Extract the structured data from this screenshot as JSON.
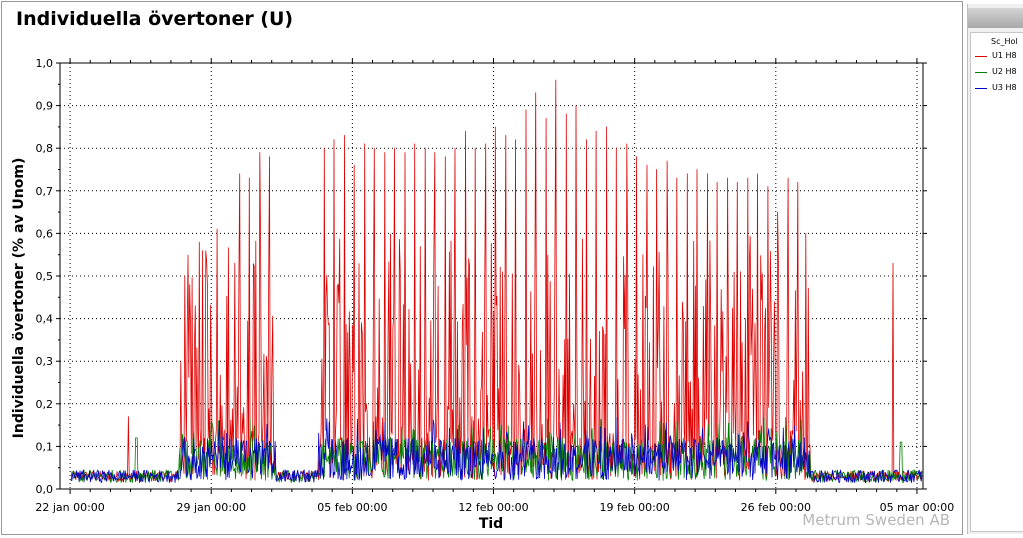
{
  "colors": {
    "u1": "#e00000",
    "u2": "#008000",
    "u3": "#0000c8"
  },
  "legend": {
    "title": "Sc_Hol",
    "items": [
      {
        "label": "U1 H8",
        "color": "#e00000"
      },
      {
        "label": "U2 H8",
        "color": "#008000"
      },
      {
        "label": "U3 H8",
        "color": "#0000c8"
      }
    ]
  },
  "watermark": "Metrum Sweden AB",
  "chart_data": {
    "type": "line",
    "title": "Individuella övertoner (U)",
    "xlabel": "Tid",
    "ylabel": "Individuella övertoner (% av Unom)",
    "ylim": [
      0,
      1.0
    ],
    "xlim_days": [
      -0.5,
      42.3
    ],
    "yticks": [
      "0,0",
      "0,1",
      "0,2",
      "0,3",
      "0,4",
      "0,5",
      "0,6",
      "0,7",
      "0,8",
      "0,9",
      "1,0"
    ],
    "xticks": [
      {
        "label": "22 jan 00:00",
        "day": 0
      },
      {
        "label": "29 jan 00:00",
        "day": 7
      },
      {
        "label": "05 feb 00:00",
        "day": 14
      },
      {
        "label": "12 feb 00:00",
        "day": 21
      },
      {
        "label": "19 feb 00:00",
        "day": 28
      },
      {
        "label": "26 feb 00:00",
        "day": 35
      },
      {
        "label": "05 mar 00:00",
        "day": 42
      }
    ],
    "grid": true,
    "legend_position": "right panel",
    "series": [
      {
        "name": "U1 H8",
        "color": "#e00000",
        "baseline": 0.03,
        "peaks": [
          {
            "day": 2.9,
            "value": 0.17
          },
          {
            "day": 5.7,
            "value": 0.5
          },
          {
            "day": 6.2,
            "value": 0.43
          },
          {
            "day": 6.8,
            "value": 0.48
          },
          {
            "day": 7.3,
            "value": 0.61
          },
          {
            "day": 8.4,
            "value": 0.74
          },
          {
            "day": 8.9,
            "value": 0.73
          },
          {
            "day": 9.4,
            "value": 0.79
          },
          {
            "day": 9.9,
            "value": 0.78
          },
          {
            "day": 12.6,
            "value": 0.8
          },
          {
            "day": 13.1,
            "value": 0.82
          },
          {
            "day": 13.6,
            "value": 0.83
          },
          {
            "day": 14.1,
            "value": 0.76
          },
          {
            "day": 14.6,
            "value": 0.81
          },
          {
            "day": 15.1,
            "value": 0.8
          },
          {
            "day": 15.6,
            "value": 0.79
          },
          {
            "day": 16.1,
            "value": 0.8
          },
          {
            "day": 16.6,
            "value": 0.79
          },
          {
            "day": 17.1,
            "value": 0.81
          },
          {
            "day": 17.6,
            "value": 0.8
          },
          {
            "day": 18.1,
            "value": 0.79
          },
          {
            "day": 18.6,
            "value": 0.78
          },
          {
            "day": 19.1,
            "value": 0.8
          },
          {
            "day": 19.6,
            "value": 0.84
          },
          {
            "day": 20.1,
            "value": 0.8
          },
          {
            "day": 20.6,
            "value": 0.81
          },
          {
            "day": 21.1,
            "value": 0.85
          },
          {
            "day": 21.6,
            "value": 0.83
          },
          {
            "day": 22.1,
            "value": 0.82
          },
          {
            "day": 22.6,
            "value": 0.89
          },
          {
            "day": 23.1,
            "value": 0.93
          },
          {
            "day": 23.6,
            "value": 0.87
          },
          {
            "day": 24.1,
            "value": 0.96
          },
          {
            "day": 24.6,
            "value": 0.88
          },
          {
            "day": 25.1,
            "value": 0.9
          },
          {
            "day": 25.6,
            "value": 0.82
          },
          {
            "day": 26.1,
            "value": 0.84
          },
          {
            "day": 26.6,
            "value": 0.85
          },
          {
            "day": 27.1,
            "value": 0.8
          },
          {
            "day": 27.6,
            "value": 0.81
          },
          {
            "day": 28.1,
            "value": 0.78
          },
          {
            "day": 28.6,
            "value": 0.76
          },
          {
            "day": 29.1,
            "value": 0.75
          },
          {
            "day": 29.6,
            "value": 0.77
          },
          {
            "day": 30.1,
            "value": 0.73
          },
          {
            "day": 30.6,
            "value": 0.74
          },
          {
            "day": 31.1,
            "value": 0.75
          },
          {
            "day": 31.6,
            "value": 0.74
          },
          {
            "day": 32.1,
            "value": 0.72
          },
          {
            "day": 32.6,
            "value": 0.73
          },
          {
            "day": 33.1,
            "value": 0.72
          },
          {
            "day": 33.6,
            "value": 0.73
          },
          {
            "day": 34.1,
            "value": 0.74
          },
          {
            "day": 34.6,
            "value": 0.71
          },
          {
            "day": 35.1,
            "value": 0.65
          },
          {
            "day": 35.6,
            "value": 0.73
          },
          {
            "day": 36.1,
            "value": 0.72
          },
          {
            "day": 36.5,
            "value": 0.6
          },
          {
            "day": 40.8,
            "value": 0.53
          }
        ]
      },
      {
        "name": "U2 H8",
        "color": "#008000",
        "baseline": 0.03
      },
      {
        "name": "U3 H8",
        "color": "#0000c8",
        "baseline": 0.03
      }
    ]
  }
}
